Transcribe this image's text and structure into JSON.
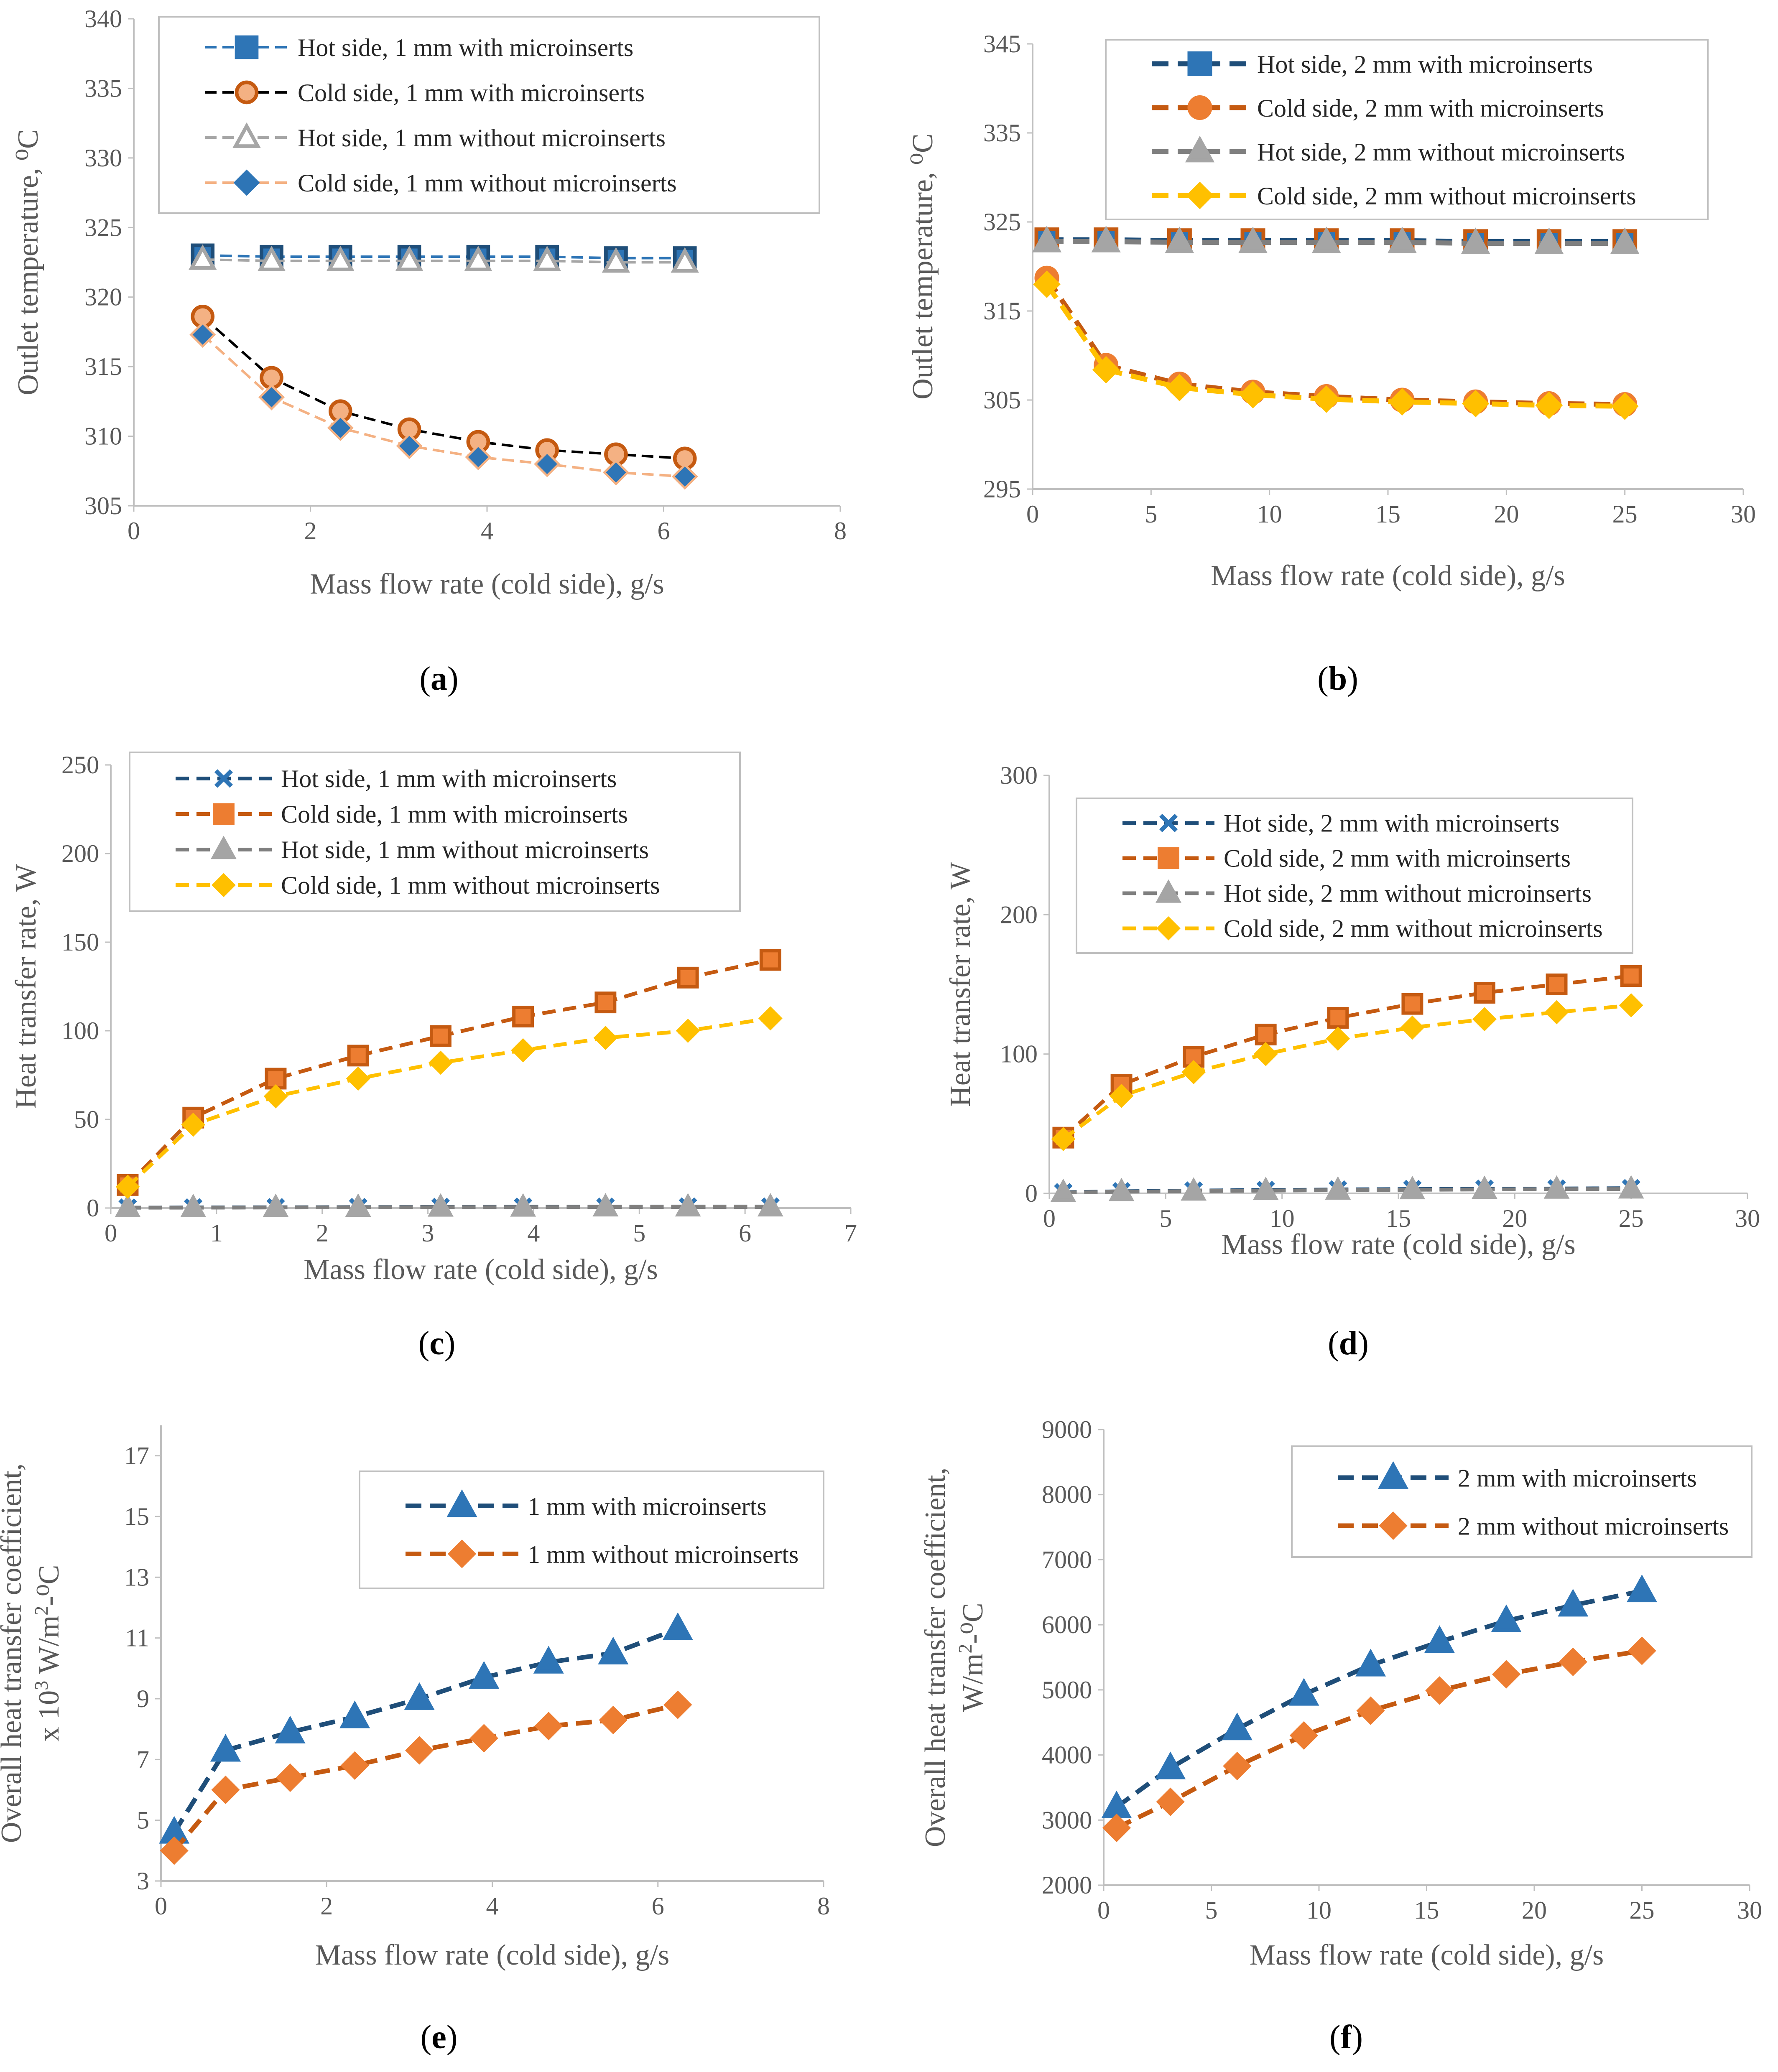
{
  "chart_data": [
    {
      "type": "line",
      "caption_letter": "a",
      "xlabel": "Mass flow rate (cold side), g/s",
      "ylabel": "Outlet temperature, ⁰C",
      "xlim": [
        0,
        8
      ],
      "ylim": [
        305,
        340
      ],
      "xticks": [
        "0",
        "2",
        "4",
        "6",
        "8"
      ],
      "yticks": [
        "305",
        "310",
        "315",
        "320",
        "325",
        "330",
        "335",
        "340"
      ],
      "legend_position": "top-right",
      "series": [
        {
          "name": "Hot side, 1 mm with microinserts",
          "marker": "square",
          "color": "#2e75b6",
          "x": [
            0.78,
            1.56,
            2.34,
            3.12,
            3.9,
            4.68,
            5.46,
            6.24
          ],
          "values": [
            323.0,
            322.9,
            322.9,
            322.9,
            322.9,
            322.9,
            322.8,
            322.8
          ]
        },
        {
          "name": "Cold side, 1 mm with microinserts",
          "marker": "circle",
          "color": "#000000",
          "marker_color": "#f4b183",
          "x": [
            0.78,
            1.56,
            2.34,
            3.12,
            3.9,
            4.68,
            5.46,
            6.24
          ],
          "values": [
            318.6,
            314.2,
            311.8,
            310.5,
            309.6,
            309.0,
            308.7,
            308.4
          ]
        },
        {
          "name": "Hot side, 1 mm without microinserts",
          "marker": "triangle-open",
          "color": "#a6a6a6",
          "x": [
            0.78,
            1.56,
            2.34,
            3.12,
            3.9,
            4.68,
            5.46,
            6.24
          ],
          "values": [
            322.7,
            322.6,
            322.6,
            322.6,
            322.6,
            322.6,
            322.5,
            322.5
          ]
        },
        {
          "name": "Cold side, 1 mm without microinserts",
          "marker": "diamond",
          "color": "#f4b183",
          "marker_color": "#2e75b6",
          "x": [
            0.78,
            1.56,
            2.34,
            3.12,
            3.9,
            4.68,
            5.46,
            6.24
          ],
          "values": [
            317.3,
            312.8,
            310.6,
            309.3,
            308.5,
            308.0,
            307.4,
            307.1
          ]
        }
      ]
    },
    {
      "type": "line",
      "caption_letter": "b",
      "xlabel": "Mass flow rate (cold side), g/s",
      "ylabel": "Outlet temperature, ⁰C",
      "xlim": [
        0,
        30
      ],
      "ylim": [
        295,
        345
      ],
      "xticks": [
        "0",
        "5",
        "10",
        "15",
        "20",
        "25",
        "30"
      ],
      "yticks": [
        "295",
        "305",
        "315",
        "325",
        "335",
        "345"
      ],
      "legend_position": "top-right",
      "series": [
        {
          "name": "Hot side, 2 mm with microinserts",
          "marker": "square",
          "color": "#1f4e79",
          "marker_color": "#2e75b6",
          "x": [
            0.6,
            3.1,
            6.2,
            9.3,
            12.4,
            15.6,
            18.7,
            21.8,
            25.0
          ],
          "values": [
            323.0,
            323.0,
            322.9,
            322.9,
            322.9,
            322.9,
            322.8,
            322.8,
            322.8
          ]
        },
        {
          "name": "Cold side, 2 mm with microinserts",
          "marker": "circle",
          "color": "#c55a11",
          "marker_color": "#ed7d31",
          "x": [
            0.6,
            3.1,
            6.2,
            9.3,
            12.4,
            15.6,
            18.7,
            21.8,
            25.0
          ],
          "values": [
            318.7,
            308.9,
            306.8,
            305.9,
            305.4,
            305.0,
            304.8,
            304.6,
            304.5
          ]
        },
        {
          "name": "Hot side, 2 mm without microinserts",
          "marker": "triangle",
          "color": "#7f7f7f",
          "marker_color": "#a5a5a5",
          "x": [
            0.6,
            3.1,
            6.2,
            9.3,
            12.4,
            15.6,
            18.7,
            21.8,
            25.0
          ],
          "values": [
            322.8,
            322.8,
            322.7,
            322.7,
            322.7,
            322.7,
            322.6,
            322.6,
            322.6
          ]
        },
        {
          "name": "Cold side, 2 mm without microinserts",
          "marker": "diamond",
          "color": "#ffc000",
          "marker_color": "#ffc000",
          "x": [
            0.6,
            3.1,
            6.2,
            9.3,
            12.4,
            15.6,
            18.7,
            21.8,
            25.0
          ],
          "values": [
            318.0,
            308.4,
            306.4,
            305.6,
            305.1,
            304.8,
            304.6,
            304.4,
            304.3
          ]
        }
      ]
    },
    {
      "type": "line",
      "caption_letter": "c",
      "xlabel": "Mass flow rate (cold side), g/s",
      "ylabel": "Heat transfer rate, W",
      "xlim": [
        0,
        7
      ],
      "ylim": [
        0,
        250
      ],
      "xticks": [
        "0",
        "1",
        "2",
        "3",
        "4",
        "5",
        "6",
        "7"
      ],
      "yticks": [
        "0",
        "50",
        "100",
        "150",
        "200",
        "250"
      ],
      "legend_position": "top-center",
      "series": [
        {
          "name": "Hot side, 1 mm with microinserts",
          "marker": "x",
          "color": "#1f4e79",
          "marker_color": "#2e75b6",
          "x": [
            0.16,
            0.78,
            1.56,
            2.34,
            3.12,
            3.9,
            4.68,
            5.46,
            6.24
          ],
          "values": [
            0.2,
            0.3,
            0.4,
            0.5,
            0.6,
            0.7,
            0.7,
            0.8,
            0.8
          ]
        },
        {
          "name": "Cold side, 1 mm with microinserts",
          "marker": "square",
          "color": "#c55a11",
          "marker_color": "#ed7d31",
          "x": [
            0.16,
            0.78,
            1.56,
            2.34,
            3.12,
            3.9,
            4.68,
            5.46,
            6.24
          ],
          "values": [
            13,
            51,
            73,
            86,
            97,
            108,
            116,
            130,
            140
          ]
        },
        {
          "name": "Hot side, 1 mm without microinserts",
          "marker": "triangle",
          "color": "#7f7f7f",
          "marker_color": "#a5a5a5",
          "x": [
            0.16,
            0.78,
            1.56,
            2.34,
            3.12,
            3.9,
            4.68,
            5.46,
            6.24
          ],
          "values": [
            0.2,
            0.2,
            0.3,
            0.4,
            0.5,
            0.5,
            0.6,
            0.6,
            0.6
          ]
        },
        {
          "name": "Cold side, 1 mm without microinserts",
          "marker": "diamond",
          "color": "#ffc000",
          "marker_color": "#ffc000",
          "x": [
            0.16,
            0.78,
            1.56,
            2.34,
            3.12,
            3.9,
            4.68,
            5.46,
            6.24
          ],
          "values": [
            12,
            47,
            63,
            73,
            82,
            89,
            96,
            100,
            107
          ]
        }
      ]
    },
    {
      "type": "line",
      "caption_letter": "d",
      "xlabel": "Mass flow rate (cold side), g/s",
      "ylabel": "Heat transfer rate, W",
      "xlim": [
        0,
        30
      ],
      "ylim": [
        0,
        300
      ],
      "xticks": [
        "0",
        "5",
        "10",
        "15",
        "20",
        "25",
        "30"
      ],
      "yticks": [
        "0",
        "100",
        "200",
        "300"
      ],
      "legend_position": "top-center",
      "series": [
        {
          "name": "Hot side, 2 mm with microinserts",
          "marker": "x",
          "color": "#1f4e79",
          "marker_color": "#2e75b6",
          "x": [
            0.6,
            3.1,
            6.2,
            9.3,
            12.4,
            15.6,
            18.7,
            21.8,
            25.0
          ],
          "values": [
            0.8,
            1.5,
            2.0,
            2.4,
            2.8,
            3.1,
            3.3,
            3.5,
            3.7
          ]
        },
        {
          "name": "Cold side, 2 mm with microinserts",
          "marker": "square",
          "color": "#c55a11",
          "marker_color": "#ed7d31",
          "x": [
            0.6,
            3.1,
            6.2,
            9.3,
            12.4,
            15.6,
            18.7,
            21.8,
            25.0
          ],
          "values": [
            40,
            78,
            98,
            114,
            126,
            136,
            144,
            150,
            156
          ]
        },
        {
          "name": "Hot side, 2 mm without microinserts",
          "marker": "triangle",
          "color": "#7f7f7f",
          "marker_color": "#a5a5a5",
          "x": [
            0.6,
            3.1,
            6.2,
            9.3,
            12.4,
            15.6,
            18.7,
            21.8,
            25.0
          ],
          "values": [
            0.6,
            1.2,
            1.6,
            2.0,
            2.3,
            2.6,
            2.8,
            3.0,
            3.1
          ]
        },
        {
          "name": "Cold side, 2 mm without microinserts",
          "marker": "diamond",
          "color": "#ffc000",
          "marker_color": "#ffc000",
          "x": [
            0.6,
            3.1,
            6.2,
            9.3,
            12.4,
            15.6,
            18.7,
            21.8,
            25.0
          ],
          "values": [
            39,
            70,
            87,
            100,
            111,
            119,
            125,
            130,
            135
          ]
        }
      ]
    },
    {
      "type": "line",
      "caption_letter": "e",
      "xlabel": "Mass flow rate (cold side), g/s",
      "ylabel_line1": "Overall heat transfer coefficient,",
      "ylabel_line2_prefix": "x 10",
      "ylabel_line2_sup": "3",
      "ylabel_line2_mid": " W/m",
      "ylabel_line2_sup2": "2",
      "ylabel_line2_suffix": "-⁰C",
      "xlim": [
        0,
        8
      ],
      "ylim": [
        3,
        18
      ],
      "xticks": [
        "0",
        "2",
        "4",
        "6",
        "8"
      ],
      "yticks": [
        "3",
        "5",
        "7",
        "9",
        "11",
        "13",
        "15",
        "17"
      ],
      "ytick_values": [
        3,
        5,
        7,
        9,
        11,
        13,
        15,
        17
      ],
      "legend_position": "top-right",
      "series": [
        {
          "name": "1 mm with microinserts",
          "marker": "triangle",
          "color": "#1f4e79",
          "marker_color": "#2e75b6",
          "x": [
            0.16,
            0.78,
            1.56,
            2.34,
            3.12,
            3.9,
            4.68,
            5.46,
            6.24
          ],
          "values": [
            4.6,
            7.3,
            7.9,
            8.4,
            9.0,
            9.7,
            10.2,
            10.5,
            11.3
          ]
        },
        {
          "name": "1 mm without microinserts",
          "marker": "diamond",
          "color": "#c55a11",
          "marker_color": "#ed7d31",
          "x": [
            0.16,
            0.78,
            1.56,
            2.34,
            3.12,
            3.9,
            4.68,
            5.46,
            6.24
          ],
          "values": [
            4.0,
            6.0,
            6.4,
            6.8,
            7.3,
            7.7,
            8.1,
            8.3,
            8.8
          ]
        }
      ]
    },
    {
      "type": "line",
      "caption_letter": "f",
      "xlabel": "Mass flow rate (cold side), g/s",
      "ylabel_line1": "Overall heat transfer coefficient,",
      "ylabel_line2_prefix": "W/m",
      "ylabel_line2_sup": "2",
      "ylabel_line2_mid": "-⁰C",
      "xlim": [
        0,
        30
      ],
      "ylim": [
        2000,
        9000
      ],
      "xticks": [
        "0",
        "5",
        "10",
        "15",
        "20",
        "25",
        "30"
      ],
      "yticks": [
        "2000",
        "3000",
        "4000",
        "5000",
        "6000",
        "7000",
        "8000",
        "9000"
      ],
      "legend_position": "top-right",
      "series": [
        {
          "name": "2 mm with microinserts",
          "marker": "triangle",
          "color": "#1f4e79",
          "marker_color": "#2e75b6",
          "x": [
            0.6,
            3.1,
            6.2,
            9.3,
            12.4,
            15.6,
            18.7,
            21.8,
            25.0
          ],
          "values": [
            3200,
            3800,
            4400,
            4930,
            5380,
            5740,
            6060,
            6300,
            6520
          ]
        },
        {
          "name": "2 mm without microinserts",
          "marker": "diamond",
          "color": "#c55a11",
          "marker_color": "#ed7d31",
          "x": [
            0.6,
            3.1,
            6.2,
            9.3,
            12.4,
            15.6,
            18.7,
            21.8,
            25.0
          ],
          "values": [
            2880,
            3280,
            3830,
            4300,
            4680,
            4990,
            5240,
            5430,
            5600
          ]
        }
      ]
    }
  ]
}
